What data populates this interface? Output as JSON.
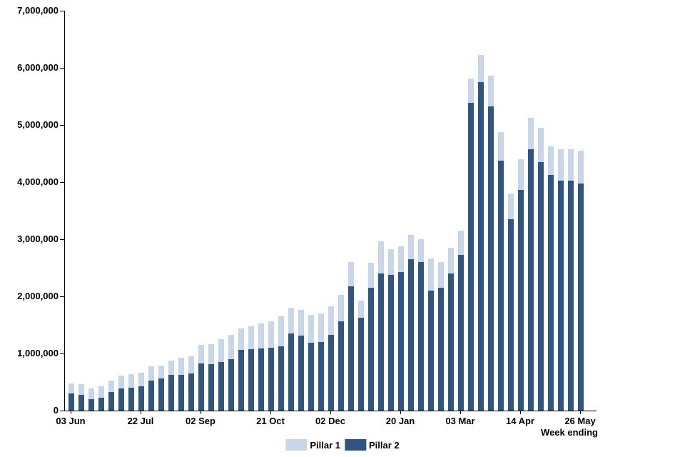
{
  "chart_data": {
    "type": "bar",
    "stacked": true,
    "title": "",
    "xlabel": "Week ending",
    "ylabel": "",
    "ylim": [
      0,
      7000000
    ],
    "ytick_interval": 1000000,
    "ytick_labels": [
      "0",
      "1,000,000",
      "2,000,000",
      "3,000,000",
      "4,000,000",
      "5,000,000",
      "6,000,000",
      "7,000,000"
    ],
    "grid": false,
    "legend_position": "bottom",
    "xticks": [
      {
        "index": 0,
        "label": "03 Jun"
      },
      {
        "index": 7,
        "label": "22 Jul"
      },
      {
        "index": 13,
        "label": "02 Sep"
      },
      {
        "index": 20,
        "label": "21 Oct"
      },
      {
        "index": 26,
        "label": "02 Dec"
      },
      {
        "index": 33,
        "label": "20 Jan"
      },
      {
        "index": 39,
        "label": "03 Mar"
      },
      {
        "index": 45,
        "label": "14 Apr"
      },
      {
        "index": 51,
        "label": "26 May"
      }
    ],
    "series": [
      {
        "name": "Pillar 1",
        "color": "#c9d6e8",
        "values": [
          170000,
          190000,
          190000,
          200000,
          200000,
          220000,
          240000,
          230000,
          250000,
          230000,
          260000,
          300000,
          300000,
          330000,
          350000,
          400000,
          420000,
          380000,
          400000,
          440000,
          460000,
          530000,
          450000,
          450000,
          480000,
          500000,
          490000,
          460000,
          430000,
          310000,
          440000,
          560000,
          460000,
          440000,
          430000,
          400000,
          560000,
          450000,
          450000,
          430000,
          420000,
          480000,
          530000,
          500000,
          450000,
          540000,
          550000,
          600000,
          500000,
          560000,
          540000,
          570000
        ]
      },
      {
        "name": "Pillar 2",
        "color": "#305680",
        "values": [
          300000,
          270000,
          200000,
          220000,
          330000,
          390000,
          400000,
          430000,
          530000,
          560000,
          620000,
          630000,
          650000,
          820000,
          810000,
          850000,
          900000,
          1060000,
          1070000,
          1090000,
          1100000,
          1120000,
          1350000,
          1310000,
          1190000,
          1200000,
          1330000,
          1560000,
          2170000,
          1620000,
          2150000,
          2400000,
          2370000,
          2430000,
          2650000,
          2600000,
          2100000,
          2150000,
          2400000,
          2720000,
          5390000,
          5750000,
          5330000,
          4370000,
          3350000,
          3860000,
          4570000,
          4350000,
          4120000,
          4020000,
          4030000,
          3980000
        ]
      }
    ]
  }
}
